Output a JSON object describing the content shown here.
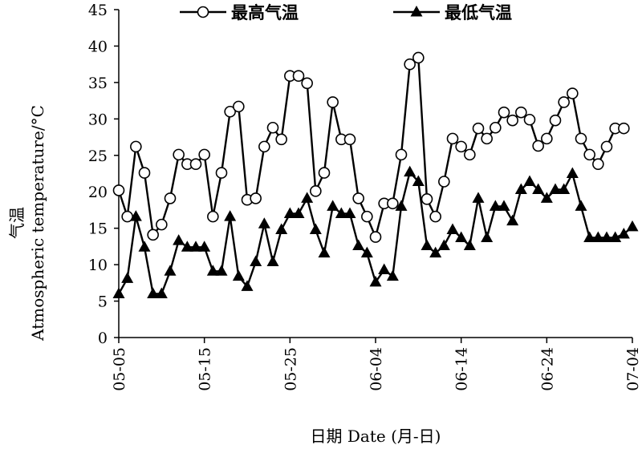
{
  "chart_data": {
    "type": "line",
    "title": "",
    "xlabel": "日期 Date (月-日)",
    "ylabel_cn": "气温",
    "ylabel_en": "Atmospheric temperature/°C",
    "ylim": [
      0,
      45
    ],
    "yticks": [
      0,
      5,
      10,
      15,
      20,
      25,
      30,
      35,
      40,
      45
    ],
    "x_start": "05-05",
    "x_end": "07-04",
    "x_ticks": [
      "05-05",
      "05-15",
      "05-25",
      "06-04",
      "06-14",
      "06-24",
      "07-04"
    ],
    "x": [
      "05-05",
      "05-06",
      "05-07",
      "05-08",
      "05-09",
      "05-10",
      "05-11",
      "05-12",
      "05-13",
      "05-14",
      "05-15",
      "05-16",
      "05-17",
      "05-18",
      "05-19",
      "05-20",
      "05-21",
      "05-22",
      "05-23",
      "05-24",
      "05-25",
      "05-26",
      "05-27",
      "05-28",
      "05-29",
      "05-30",
      "05-31",
      "06-01",
      "06-02",
      "06-03",
      "06-04",
      "06-05",
      "06-06",
      "06-07",
      "06-08",
      "06-09",
      "06-10",
      "06-11",
      "06-12",
      "06-13",
      "06-14",
      "06-15",
      "06-16",
      "06-17",
      "06-18",
      "06-19",
      "06-20",
      "06-21",
      "06-22",
      "06-23",
      "06-24",
      "06-25",
      "06-26",
      "06-27",
      "06-28",
      "06-29",
      "06-30",
      "07-01",
      "07-02",
      "07-03",
      "07-04"
    ],
    "legend_position": "top",
    "series": [
      {
        "name": "最高气温",
        "marker": "open-circle",
        "values": [
          20.2,
          16.6,
          26.2,
          22.6,
          14.1,
          15.5,
          19.1,
          25.1,
          23.8,
          23.8,
          25.1,
          16.6,
          22.6,
          31.0,
          31.7,
          18.9,
          19.1,
          26.2,
          28.8,
          27.2,
          35.9,
          35.9,
          34.9,
          20.1,
          22.6,
          32.3,
          27.2,
          27.2,
          19.1,
          16.6,
          13.8,
          18.4,
          18.4,
          25.1,
          37.5,
          38.4,
          19.0,
          16.6,
          21.4,
          27.3,
          26.2,
          25.1,
          28.7,
          27.3,
          28.8,
          30.9,
          29.8,
          30.9,
          29.9,
          26.3,
          27.3,
          29.8,
          32.3,
          33.5,
          27.3,
          25.1,
          23.8,
          26.2,
          28.7,
          28.7,
          null
        ],
        "color": "#000000"
      },
      {
        "name": "最低气温",
        "marker": "filled-triangle",
        "values": [
          6.0,
          8.1,
          16.6,
          12.4,
          6.0,
          6.0,
          9.1,
          13.3,
          12.4,
          12.4,
          12.4,
          9.1,
          9.1,
          16.6,
          8.4,
          7.0,
          10.4,
          15.6,
          10.4,
          14.8,
          17.0,
          17.0,
          19.1,
          14.8,
          11.6,
          18.0,
          17.0,
          17.0,
          12.6,
          11.6,
          7.6,
          9.3,
          8.4,
          18.0,
          22.7,
          21.4,
          12.6,
          11.6,
          12.6,
          14.8,
          13.7,
          12.6,
          19.1,
          13.7,
          18.0,
          18.0,
          16.0,
          20.3,
          21.4,
          20.3,
          19.1,
          20.3,
          20.3,
          22.5,
          18.0,
          13.7,
          13.7,
          13.7,
          13.7,
          14.2,
          15.2
        ],
        "color": "#000000"
      }
    ]
  }
}
